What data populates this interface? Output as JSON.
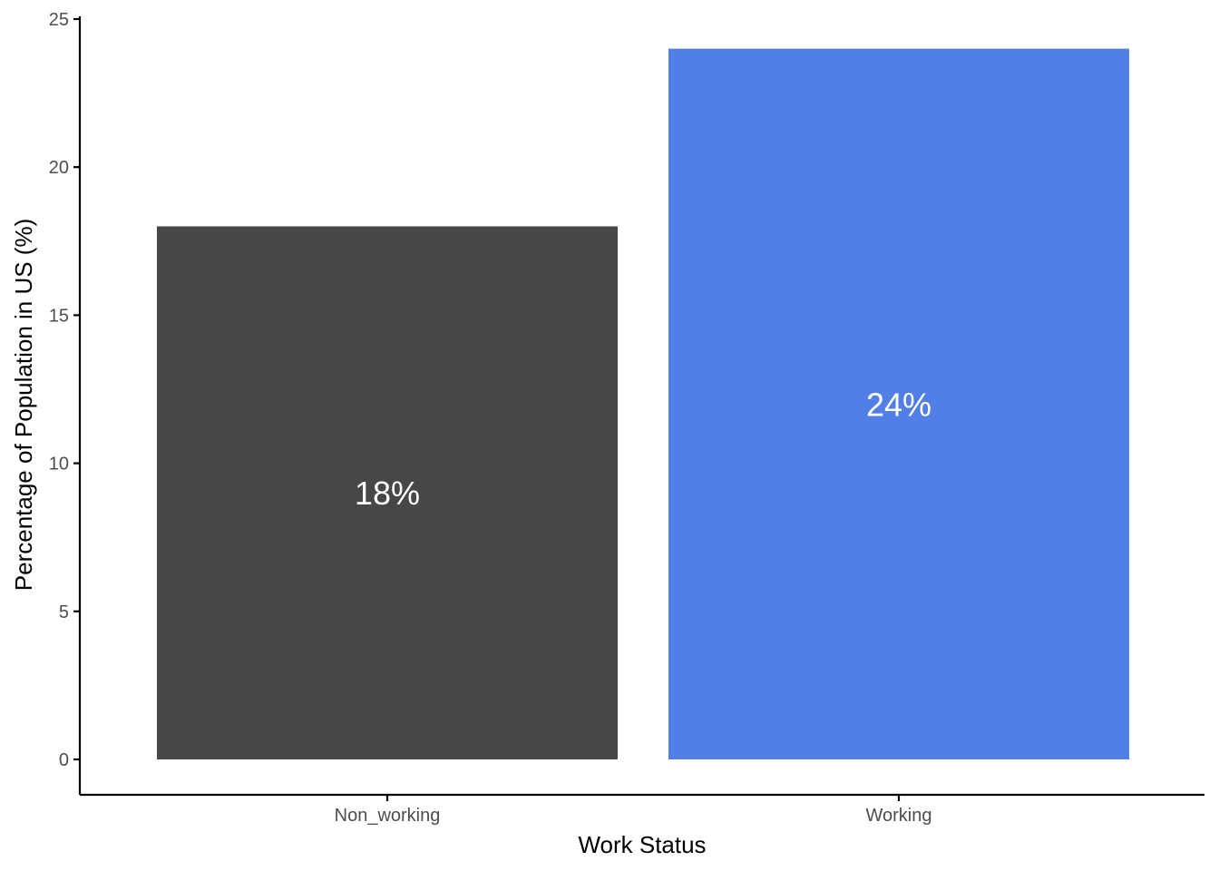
{
  "chart_data": {
    "type": "bar",
    "categories": [
      "Non_working",
      "Working"
    ],
    "values": [
      18,
      24
    ],
    "bar_labels": [
      "18%",
      "24%"
    ],
    "colors": [
      "#474747",
      "#517FE6"
    ],
    "title": "",
    "xlabel": "Work Status",
    "ylabel": "Percentage of Population in US (%)",
    "ylim": [
      0,
      25
    ],
    "yticks": [
      0,
      5,
      10,
      15,
      20,
      25
    ],
    "ytick_labels": [
      "0",
      "5",
      "10",
      "15",
      "20",
      "25"
    ],
    "grid": false,
    "legend": "none"
  }
}
